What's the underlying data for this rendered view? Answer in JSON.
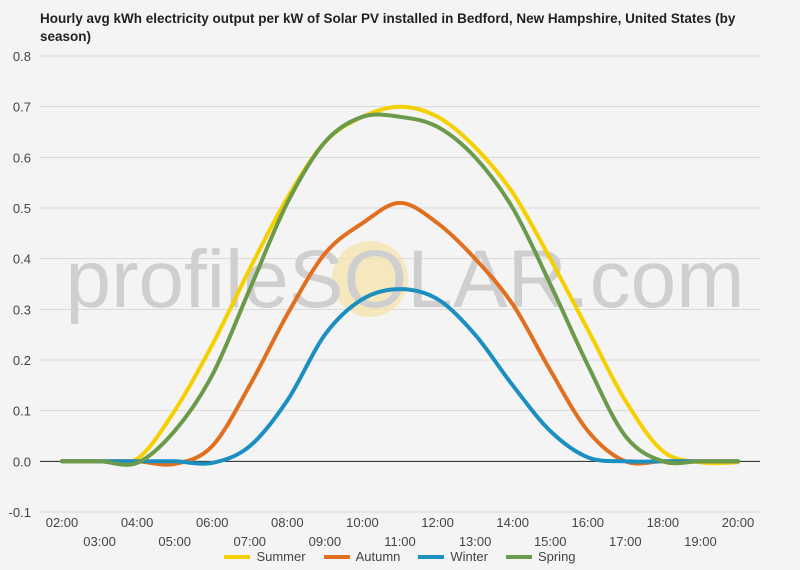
{
  "chart_data": {
    "type": "line",
    "title": "Hourly avg kWh electricity output per kW of Solar PV installed in Bedford, New Hampshire, United States (by season)",
    "xlabel": "",
    "ylabel": "",
    "x": [
      "02:00",
      "03:00",
      "04:00",
      "05:00",
      "06:00",
      "07:00",
      "08:00",
      "09:00",
      "10:00",
      "11:00",
      "12:00",
      "13:00",
      "14:00",
      "15:00",
      "16:00",
      "17:00",
      "18:00",
      "19:00",
      "20:00"
    ],
    "ylim": [
      -0.1,
      0.8
    ],
    "yticks": [
      "-0.1",
      "0.0",
      "0.1",
      "0.2",
      "0.3",
      "0.4",
      "0.5",
      "0.6",
      "0.7",
      "0.8"
    ],
    "grid": true,
    "legend_position": "bottom",
    "watermark": "profileSOLAR.com",
    "series": [
      {
        "name": "Summer",
        "color": "#f5d000",
        "values": [
          0.0,
          0.0,
          0.005,
          0.1,
          0.23,
          0.38,
          0.52,
          0.63,
          0.68,
          0.7,
          0.68,
          0.62,
          0.53,
          0.4,
          0.26,
          0.12,
          0.02,
          -0.002,
          -0.002
        ]
      },
      {
        "name": "Autumn",
        "color": "#e07020",
        "values": [
          0.0,
          0.0,
          0.0,
          -0.005,
          0.03,
          0.15,
          0.29,
          0.41,
          0.47,
          0.51,
          0.47,
          0.4,
          0.31,
          0.18,
          0.06,
          0.0,
          0.0,
          0.0,
          0.0
        ]
      },
      {
        "name": "Winter",
        "color": "#1a8fc0",
        "values": [
          0.0,
          0.0,
          0.0,
          0.0,
          -0.003,
          0.03,
          0.12,
          0.25,
          0.32,
          0.34,
          0.32,
          0.25,
          0.15,
          0.06,
          0.008,
          0.0,
          0.0,
          0.0,
          0.0
        ]
      },
      {
        "name": "Spring",
        "color": "#6a9a4a",
        "values": [
          0.0,
          0.0,
          -0.003,
          0.06,
          0.17,
          0.34,
          0.51,
          0.63,
          0.68,
          0.68,
          0.66,
          0.6,
          0.5,
          0.35,
          0.19,
          0.05,
          0.0,
          0.0,
          0.0
        ]
      }
    ]
  }
}
